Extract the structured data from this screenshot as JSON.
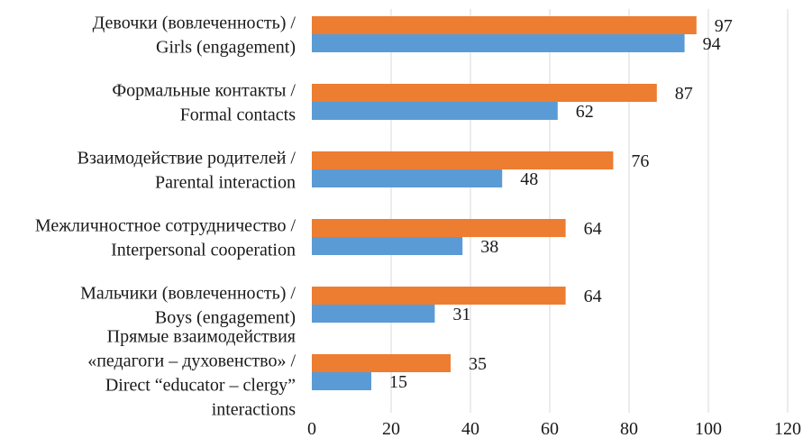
{
  "chart_data": {
    "type": "bar",
    "orientation": "horizontal",
    "title": "",
    "xlabel": "",
    "ylabel": "",
    "xlim": [
      0,
      120
    ],
    "x_ticks": [
      0,
      20,
      40,
      60,
      80,
      100,
      120
    ],
    "grid": true,
    "legend": "none",
    "categories": [
      [
        "Девочки (вовлеченность) /",
        "Girls (engagement)"
      ],
      [
        "Формальные контакты /",
        "Formal contacts"
      ],
      [
        "Взаимодействие родителей /",
        "Parental interaction"
      ],
      [
        "Межличностное сотрудничество /",
        "Interpersonal cooperation"
      ],
      [
        "Мальчики (вовлеченность) /",
        "Boys (engagement)"
      ],
      [
        "Прямые взаимодействия",
        "«педагоги – духовенство» /",
        "Direct “educator – clergy”",
        "interactions"
      ]
    ],
    "series": [
      {
        "name": "series-orange",
        "color": "#ed7d31",
        "values": [
          97,
          87,
          76,
          64,
          64,
          35
        ]
      },
      {
        "name": "series-blue",
        "color": "#5b9bd5",
        "values": [
          94,
          62,
          48,
          38,
          31,
          15
        ]
      }
    ]
  }
}
